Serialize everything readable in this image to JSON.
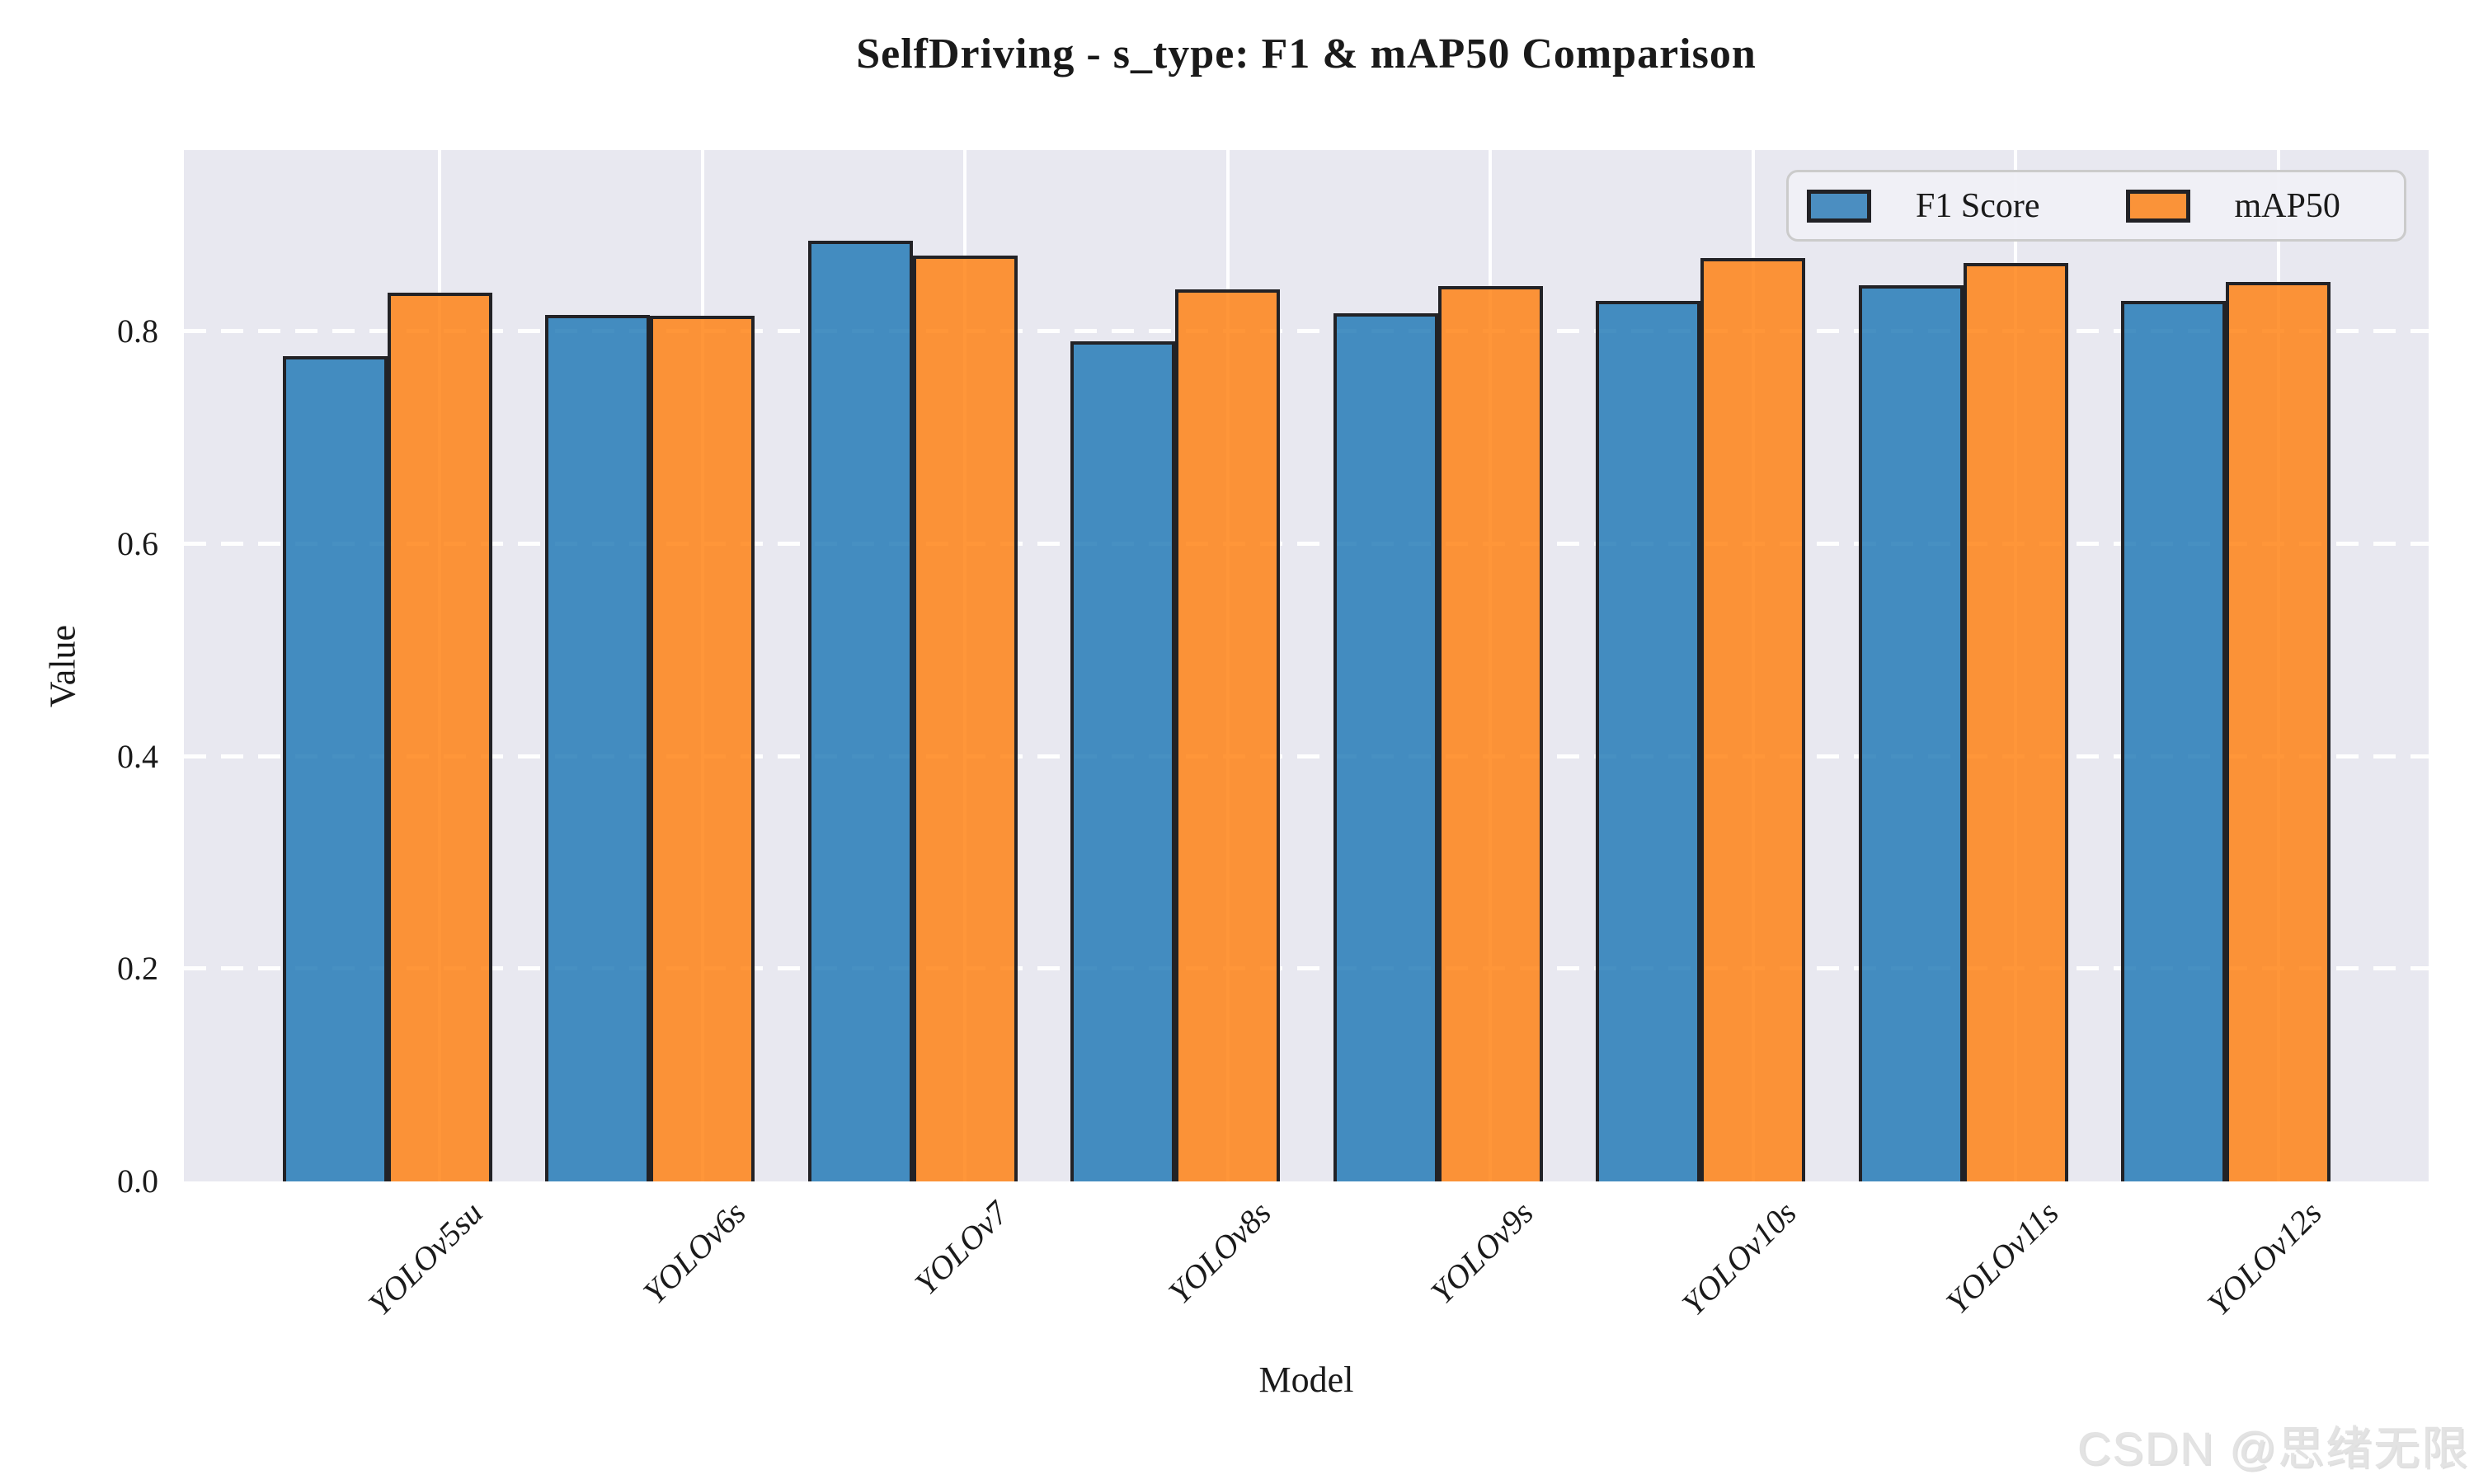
{
  "figure": {
    "title": "SelfDriving - s_type: F1 & mAP50 Comparison",
    "watermark": "CSDN @思绪无限"
  },
  "chart_data": {
    "type": "bar",
    "title": "SelfDriving - s_type: F1 & mAP50 Comparison",
    "xlabel": "Model",
    "ylabel": "Value",
    "categories": [
      "YOLOv5su",
      "YOLOv6s",
      "YOLOv7",
      "YOLOv8s",
      "YOLOv9s",
      "YOLOv10s",
      "YOLOv11s",
      "YOLOv12s"
    ],
    "series": [
      {
        "name": "F1 Score",
        "color": "#1f77b4",
        "fill": "rgba(31,119,180,0.82)",
        "legend_color": "#4b8ec1",
        "values": [
          0.777,
          0.816,
          0.886,
          0.791,
          0.817,
          0.829,
          0.844,
          0.829
        ]
      },
      {
        "name": "mAP50",
        "color": "#ff7f0e",
        "fill": "rgba(255,127,14,0.82)",
        "legend_color": "#fa9339",
        "values": [
          0.837,
          0.815,
          0.872,
          0.84,
          0.843,
          0.869,
          0.865,
          0.847
        ]
      }
    ],
    "ylim": [
      0,
      0.97
    ],
    "yticks": [
      0.0,
      0.2,
      0.4,
      0.6,
      0.8
    ],
    "legend_position": "upper right",
    "grid": {
      "horizontal": "white dashed",
      "vertical": "white solid"
    },
    "plot_background": "#e8e8f0",
    "bar_edge_color": "#222226"
  }
}
